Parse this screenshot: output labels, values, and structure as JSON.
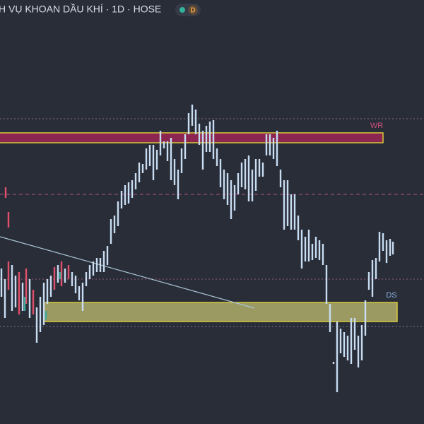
{
  "header": {
    "title": "H VỤ KHOAN DẦU KHÍ · 1D · HOSE",
    "badge": "D"
  },
  "zones": [
    {
      "label": "WR"
    },
    {
      "label": "DS"
    }
  ]
}
